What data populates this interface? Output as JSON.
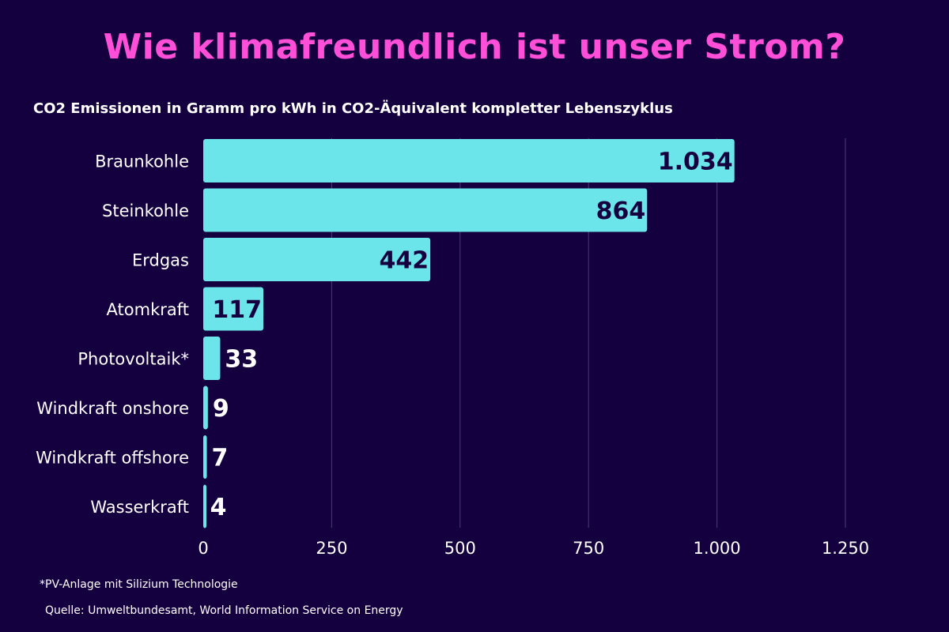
{
  "header": {
    "title": "Wie klimafreundlich ist unser Strom?",
    "subtitle": "CO2 Emissionen in Gramm pro kWh in CO2-Äquivalent kompletter Lebenszyklus"
  },
  "footer": {
    "footnote": "*PV-Anlage mit Silizium Technologie",
    "source": "Quelle: Umweltbundesamt, World Information Service on Energy"
  },
  "colors": {
    "background": "#15003f",
    "title": "#ff4fd8",
    "bar": "#6ce5ea",
    "label_inside": "#15003f",
    "label_outside": "#ffffff",
    "grid": "#4a3b78"
  },
  "chart_data": {
    "type": "bar",
    "orientation": "horizontal",
    "categories": [
      "Braunkohle",
      "Steinkohle",
      "Erdgas",
      "Atomkraft",
      "Photovoltaik*",
      "Windkraft onshore",
      "Windkraft offshore",
      "Wasserkraft"
    ],
    "values": [
      1034,
      864,
      442,
      117,
      33,
      9,
      7,
      4
    ],
    "value_labels": [
      "1.034",
      "864",
      "442",
      "117",
      "33",
      "9",
      "7",
      "4"
    ],
    "xlim": [
      0,
      1250
    ],
    "xticks": [
      0,
      250,
      500,
      750,
      1000,
      1250
    ],
    "xtick_labels": [
      "0",
      "250",
      "500",
      "750",
      "1.000",
      "1.250"
    ],
    "grid": true
  }
}
